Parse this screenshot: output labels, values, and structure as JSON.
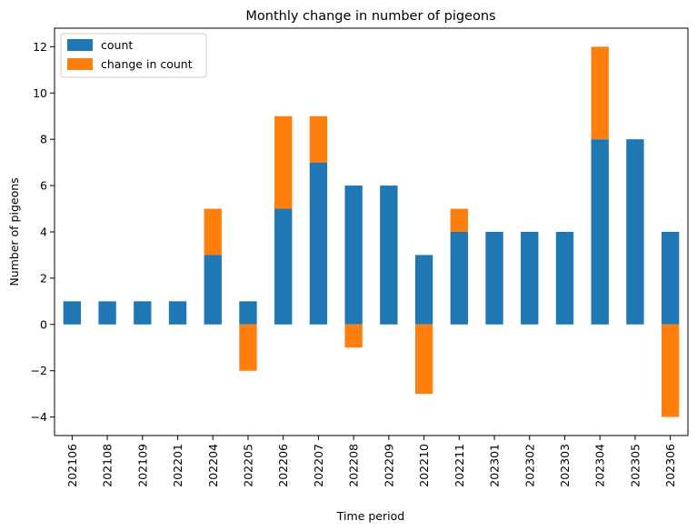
{
  "chart_data": {
    "type": "bar",
    "stacked": true,
    "title": "Monthly change in number of pigeons",
    "xlabel": "Time period",
    "ylabel": "Number of pigeons",
    "categories": [
      "202106",
      "202108",
      "202109",
      "202201",
      "202204",
      "202205",
      "202206",
      "202207",
      "202208",
      "202209",
      "202210",
      "202211",
      "202301",
      "202302",
      "202303",
      "202304",
      "202305",
      "202306"
    ],
    "series": [
      {
        "name": "count",
        "color": "#1f77b4",
        "values": [
          1,
          1,
          1,
          1,
          3,
          1,
          5,
          7,
          6,
          6,
          3,
          4,
          4,
          4,
          4,
          8,
          8,
          4
        ]
      },
      {
        "name": "change in count",
        "color": "#ff7f0e",
        "values": [
          0,
          0,
          0,
          0,
          2,
          -2,
          4,
          2,
          -1,
          0,
          -3,
          1,
          0,
          0,
          0,
          4,
          0,
          -4
        ]
      }
    ],
    "ylim": [
      -4.8,
      12.8
    ],
    "yticks": [
      -4,
      -2,
      0,
      2,
      4,
      6,
      8,
      10,
      12
    ],
    "legend_position": "top-left",
    "grid": false
  }
}
